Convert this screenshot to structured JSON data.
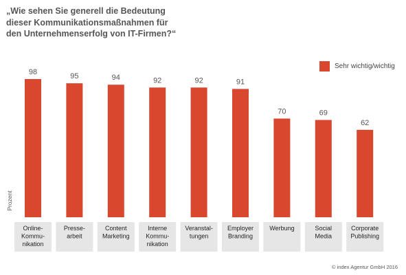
{
  "chart_data": {
    "type": "bar",
    "title_lines": [
      "„Wie sehen Sie generell die Bedeutung",
      "dieser Kommunikationsmaßnahmen für",
      "den Unternehmenserfolg von IT-Firmen?“"
    ],
    "ylabel": "Prozent",
    "legend": {
      "label": "Sehr wichtig/wichtig",
      "placement": "top-right"
    },
    "categories": [
      [
        "Online-",
        "Kommu-",
        "nikation"
      ],
      [
        "Presse-",
        "arbeit"
      ],
      [
        "Content",
        "Marketing"
      ],
      [
        "Interne",
        "Kommu-",
        "nikation"
      ],
      [
        "Veranstal-",
        "tungen"
      ],
      [
        "Employer",
        "Branding"
      ],
      [
        "Werbung"
      ],
      [
        "Social",
        "Media"
      ],
      [
        "Corporate",
        "Publishing"
      ]
    ],
    "series": [
      {
        "name": "Sehr wichtig/wichtig",
        "values": [
          98,
          95,
          94,
          92,
          92,
          91,
          70,
          69,
          62
        ]
      }
    ],
    "ylim": [
      0,
      100
    ],
    "grid": false,
    "bar_color": "#d9472f",
    "label_bg_color": "#e6e6e6"
  },
  "copyright": "© index Agentur GmbH 2016"
}
